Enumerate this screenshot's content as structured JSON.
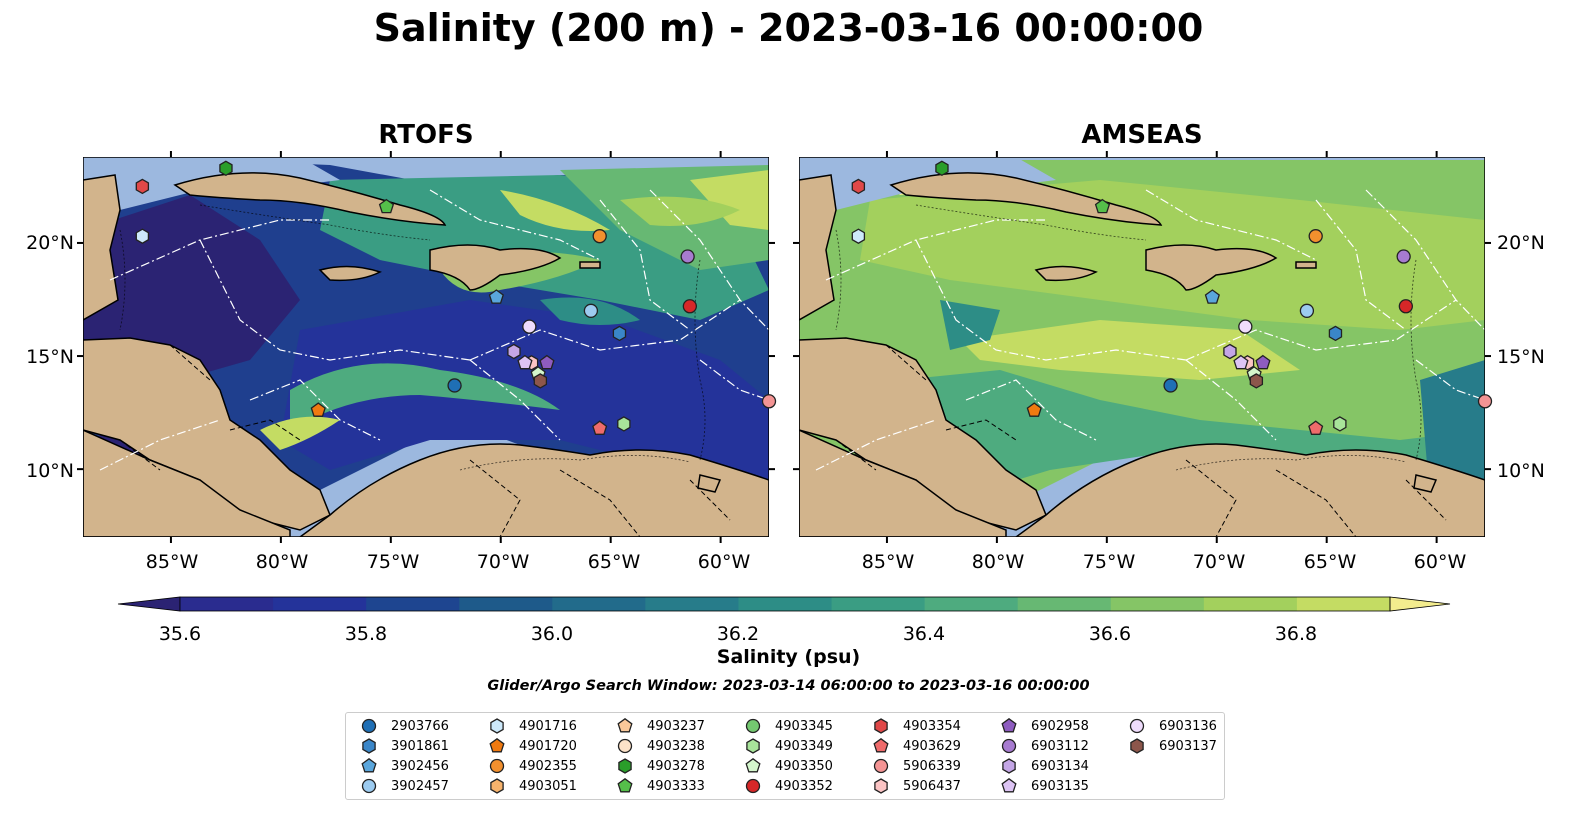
{
  "title": "Salinity (200 m) - 2023-03-16 00:00:00",
  "panels": [
    {
      "title": "RTOFS"
    },
    {
      "title": "AMSEAS"
    }
  ],
  "lat_ticks": [
    "20°N",
    "15°N",
    "10°N"
  ],
  "lon_ticks": [
    "85°W",
    "80°W",
    "75°W",
    "70°W",
    "65°W",
    "60°W"
  ],
  "colorbar": {
    "label": "Salinity (psu)",
    "ticks": [
      "35.6",
      "35.8",
      "36.0",
      "36.2",
      "36.4",
      "36.6",
      "36.8"
    ],
    "colors": [
      "#2b2373",
      "#2a2c8f",
      "#24339a",
      "#1e4590",
      "#1e5a8a",
      "#226b8b",
      "#277c8a",
      "#2d8d86",
      "#3a9d83",
      "#4eab7f",
      "#67b873",
      "#85c566",
      "#a3d05d",
      "#c4dc63",
      "#f3ec8e"
    ]
  },
  "search_window": "Glider/Argo Search Window: 2023-03-14 06:00:00 to 2023-03-16 00:00:00",
  "legend": [
    {
      "id": "2903766",
      "marker": "circle",
      "color": "#1f6fb5"
    },
    {
      "id": "3901861",
      "marker": "hexagon",
      "color": "#3a86c8"
    },
    {
      "id": "3902456",
      "marker": "pentagon",
      "color": "#5aa6dc"
    },
    {
      "id": "3902457",
      "marker": "circle",
      "color": "#9ccbf0"
    },
    {
      "id": "4901716",
      "marker": "hexagon",
      "color": "#cde9fb"
    },
    {
      "id": "4901720",
      "marker": "pentagon",
      "color": "#f07a10"
    },
    {
      "id": "4902355",
      "marker": "circle",
      "color": "#f2902e"
    },
    {
      "id": "4903051",
      "marker": "hexagon",
      "color": "#f7b36c"
    },
    {
      "id": "4903237",
      "marker": "pentagon",
      "color": "#f9c89a"
    },
    {
      "id": "4903238",
      "marker": "circle",
      "color": "#fde2c8"
    },
    {
      "id": "4903278",
      "marker": "hexagon",
      "color": "#2a9e2a"
    },
    {
      "id": "4903333",
      "marker": "pentagon",
      "color": "#55bf4a"
    },
    {
      "id": "4903345",
      "marker": "circle",
      "color": "#74c870"
    },
    {
      "id": "4903349",
      "marker": "hexagon",
      "color": "#a8e49a"
    },
    {
      "id": "4903350",
      "marker": "pentagon",
      "color": "#d4f6cc"
    },
    {
      "id": "4903352",
      "marker": "circle",
      "color": "#d62728"
    },
    {
      "id": "4903354",
      "marker": "hexagon",
      "color": "#e04848"
    },
    {
      "id": "4903629",
      "marker": "pentagon",
      "color": "#ef6b6b"
    },
    {
      "id": "5906339",
      "marker": "circle",
      "color": "#f49494"
    },
    {
      "id": "5906437",
      "marker": "hexagon",
      "color": "#fbc4c4"
    },
    {
      "id": "6902958",
      "marker": "pentagon",
      "color": "#8e5cc0"
    },
    {
      "id": "6903112",
      "marker": "circle",
      "color": "#a77bd0"
    },
    {
      "id": "6903134",
      "marker": "hexagon",
      "color": "#c4a6e6"
    },
    {
      "id": "6903135",
      "marker": "pentagon",
      "color": "#ddc4f4"
    },
    {
      "id": "6903136",
      "marker": "circle",
      "color": "#efdcfc"
    },
    {
      "id": "6903137",
      "marker": "hexagon",
      "color": "#8c564b"
    }
  ],
  "platform_positions": [
    {
      "id": "3901861",
      "lon": -64.6,
      "lat": 16.0
    },
    {
      "id": "3902457",
      "lon": -65.9,
      "lat": 17.0
    },
    {
      "id": "3902456",
      "lon": -70.2,
      "lat": 17.6
    },
    {
      "id": "4901716",
      "lon": -86.3,
      "lat": 20.3
    },
    {
      "id": "4902355",
      "lon": -65.5,
      "lat": 20.3
    },
    {
      "id": "4901720",
      "lon": -78.3,
      "lat": 12.6
    },
    {
      "id": "4903278",
      "lon": -82.5,
      "lat": 23.3
    },
    {
      "id": "4903333",
      "lon": -75.2,
      "lat": 21.6
    },
    {
      "id": "4903349",
      "lon": -64.4,
      "lat": 12.0
    },
    {
      "id": "4903350",
      "lon": -68.3,
      "lat": 14.2
    },
    {
      "id": "4903352",
      "lon": -61.4,
      "lat": 17.2
    },
    {
      "id": "4903354",
      "lon": -86.3,
      "lat": 22.5
    },
    {
      "id": "4903629",
      "lon": -65.5,
      "lat": 11.8
    },
    {
      "id": "5906339",
      "lon": -57.8,
      "lat": 13.0
    },
    {
      "id": "5906437",
      "lon": -68.6,
      "lat": 14.7
    },
    {
      "id": "6902958",
      "lon": -67.9,
      "lat": 14.7
    },
    {
      "id": "6903112",
      "lon": -61.5,
      "lat": 19.4
    },
    {
      "id": "6903134",
      "lon": -69.4,
      "lat": 15.2
    },
    {
      "id": "6903135",
      "lon": -68.9,
      "lat": 14.7
    },
    {
      "id": "6903136",
      "lon": -68.7,
      "lat": 16.3
    },
    {
      "id": "6903137",
      "lon": -68.2,
      "lat": 13.9
    },
    {
      "id": "2903766",
      "lon": -72.1,
      "lat": 13.7
    }
  ]
}
